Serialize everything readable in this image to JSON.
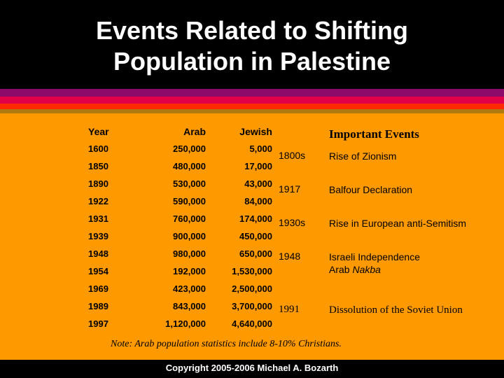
{
  "title_line1": "Events Related to Shifting",
  "title_line2": "Population in Palestine",
  "population_table": {
    "headers": [
      "Year",
      "Arab",
      "Jewish"
    ],
    "rows": [
      [
        "1600",
        "250,000",
        "5,000"
      ],
      [
        "1850",
        "480,000",
        "17,000"
      ],
      [
        "1890",
        "530,000",
        "43,000"
      ],
      [
        "1922",
        "590,000",
        "84,000"
      ],
      [
        "1931",
        "760,000",
        "174,000"
      ],
      [
        "1939",
        "900,000",
        "450,000"
      ],
      [
        "1948",
        "980,000",
        "650,000"
      ],
      [
        "1954",
        "192,000",
        "1,530,000"
      ],
      [
        "1969",
        "423,000",
        "2,500,000"
      ],
      [
        "1989",
        "843,000",
        "3,700,000"
      ],
      [
        "1997",
        "1,120,000",
        "4,640,000"
      ]
    ]
  },
  "events": {
    "heading": "Important Events",
    "items": [
      {
        "year": "1800s",
        "desc": "Rise of Zionism"
      },
      {
        "year": "1917",
        "desc": "Balfour Declaration"
      },
      {
        "year": "1930s",
        "desc": "Rise in European anti-Semitism"
      },
      {
        "year": "1948",
        "desc_line1": "Israeli Independence",
        "desc_line2_prefix": "Arab ",
        "desc_line2_italic": "Nakba"
      },
      {
        "year": "1991",
        "desc": "Dissolution of the Soviet Union"
      }
    ]
  },
  "note": {
    "label": "Note:",
    "text": " Arab population statistics include 8-10% Christians."
  },
  "footer": "Copyright 2005-2006 Michael A. Bozarth",
  "colors": {
    "background": "#000000",
    "panel": "#ff9900",
    "stripes": [
      "#8e0a6a",
      "#e0004a",
      "#ff2a00",
      "#b07a10"
    ]
  }
}
